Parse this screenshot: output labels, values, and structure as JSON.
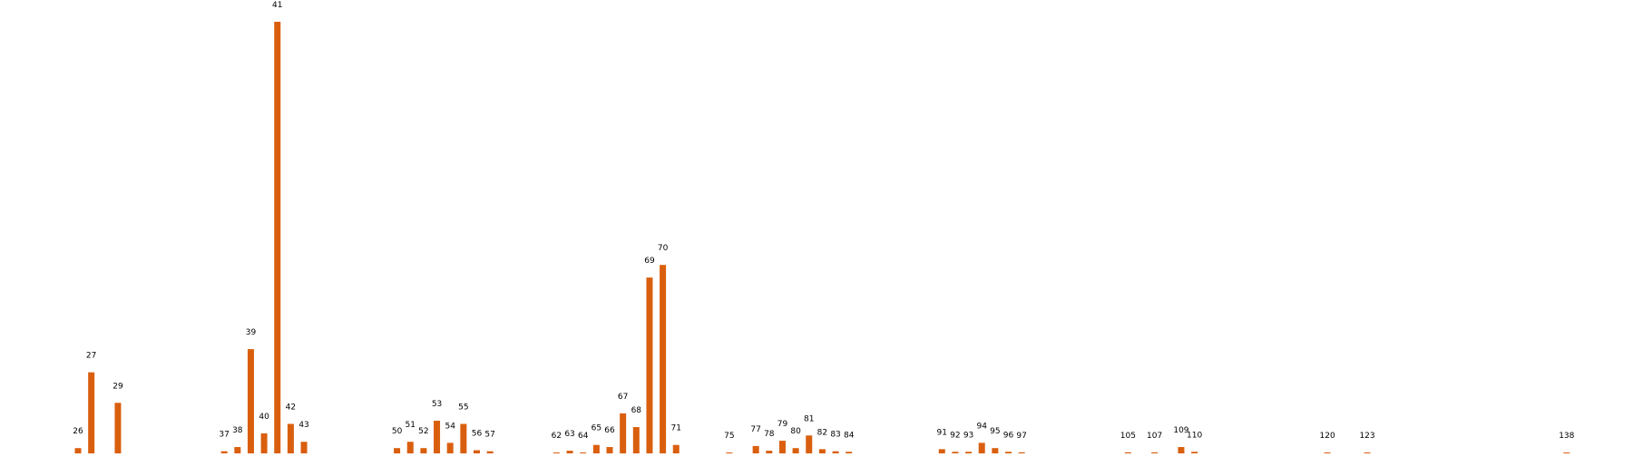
{
  "chart_data": {
    "type": "bar",
    "title": "",
    "xlabel": "",
    "ylabel": "",
    "grid": false,
    "legend": "none",
    "bar_color": "#d95f0e",
    "ylim": [
      0,
      41
    ],
    "categories": [
      "26",
      "27",
      "29",
      "37",
      "38",
      "39",
      "40",
      "41",
      "42",
      "43",
      "50",
      "51",
      "52",
      "53",
      "54",
      "55",
      "56",
      "57",
      "62",
      "63",
      "64",
      "65",
      "66",
      "67",
      "68",
      "69",
      "70",
      "71",
      "75",
      "77",
      "78",
      "79",
      "80",
      "81",
      "82",
      "83",
      "84",
      "91",
      "92",
      "93",
      "94",
      "95",
      "96",
      "97",
      "105",
      "107",
      "109",
      "110",
      "120",
      "123",
      "138"
    ],
    "x": [
      26,
      27,
      29,
      37,
      38,
      39,
      40,
      41,
      42,
      43,
      50,
      51,
      52,
      53,
      54,
      55,
      56,
      57,
      62,
      63,
      64,
      65,
      66,
      67,
      68,
      69,
      70,
      71,
      75,
      77,
      78,
      79,
      80,
      81,
      82,
      83,
      84,
      91,
      92,
      93,
      94,
      95,
      96,
      97,
      105,
      107,
      109,
      110,
      120,
      123,
      138
    ],
    "values": [
      0.5,
      7.7,
      4.8,
      0.2,
      0.6,
      9.9,
      1.9,
      41,
      2.8,
      1.1,
      0.5,
      1.1,
      0.5,
      3.1,
      1.0,
      2.8,
      0.3,
      0.2,
      0.08,
      0.25,
      0.08,
      0.8,
      0.6,
      3.8,
      2.5,
      16.7,
      17.9,
      0.8,
      0.05,
      0.7,
      0.25,
      1.2,
      0.5,
      1.7,
      0.4,
      0.2,
      0.15,
      0.4,
      0.15,
      0.15,
      1.0,
      0.5,
      0.15,
      0.1,
      0.1,
      0.1,
      0.6,
      0.15,
      0.05,
      0.05,
      0.05
    ]
  }
}
